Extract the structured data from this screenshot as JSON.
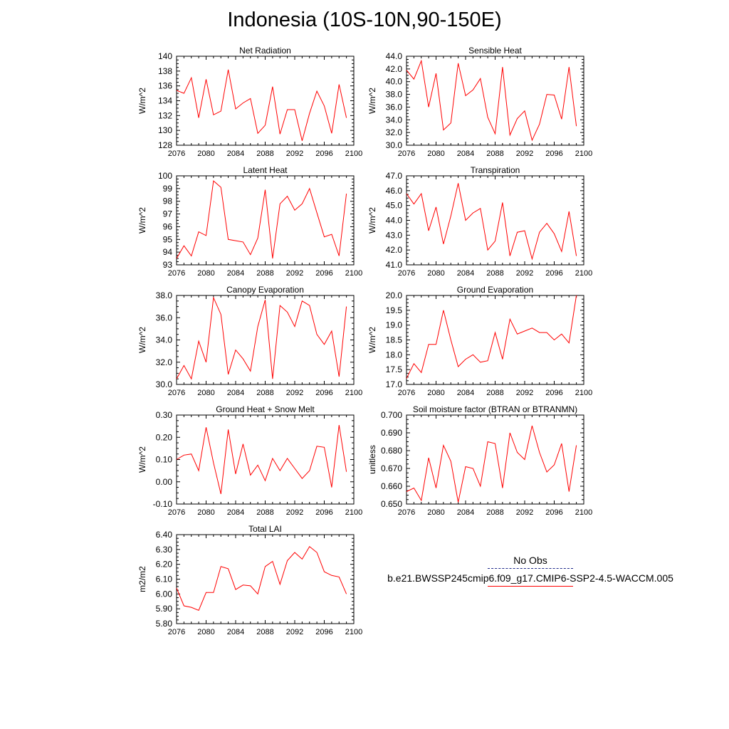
{
  "title": "Indonesia (10S-10N,90-150E)",
  "colors": {
    "series": "#ff0000",
    "obs": "#1f2a8a",
    "axis": "#000000"
  },
  "legend": {
    "obs_label": "No Obs",
    "sim_label": "b.e21.BWSSP245cmip6.f09_g17.CMIP6-SSP2-4.5-WACCM.005"
  },
  "chart_data": [
    {
      "type": "line",
      "title": "Net Radiation",
      "ylabel": "W/m^2",
      "x": [
        2076,
        2077,
        2078,
        2079,
        2080,
        2081,
        2082,
        2083,
        2084,
        2085,
        2086,
        2087,
        2088,
        2089,
        2090,
        2091,
        2092,
        2093,
        2094,
        2095,
        2096,
        2097,
        2098,
        2099
      ],
      "values": [
        135.4,
        135.0,
        137.1,
        131.7,
        136.9,
        132.1,
        132.6,
        138.2,
        132.9,
        133.7,
        134.3,
        129.6,
        130.7,
        135.9,
        129.5,
        132.8,
        132.8,
        128.6,
        132.3,
        135.3,
        133.3,
        129.6,
        136.2,
        131.7
      ],
      "xlim": [
        2076,
        2100
      ],
      "ylim": [
        128,
        140
      ],
      "xticks": [
        "2076",
        "2080",
        "2084",
        "2088",
        "2092",
        "2096",
        "2100"
      ],
      "yticks": [
        "128",
        "130",
        "132",
        "134",
        "136",
        "138",
        "140"
      ]
    },
    {
      "type": "line",
      "title": "Sensible Heat",
      "ylabel": "W/m^2",
      "x": [
        2076,
        2077,
        2078,
        2079,
        2080,
        2081,
        2082,
        2083,
        2084,
        2085,
        2086,
        2087,
        2088,
        2089,
        2090,
        2091,
        2092,
        2093,
        2094,
        2095,
        2096,
        2097,
        2098,
        2099
      ],
      "values": [
        41.8,
        40.4,
        43.3,
        36.0,
        41.3,
        32.4,
        33.5,
        42.9,
        37.8,
        38.7,
        40.5,
        34.4,
        31.8,
        42.3,
        31.6,
        34.2,
        35.4,
        30.8,
        33.3,
        38.0,
        37.9,
        34.1,
        42.3,
        33.0
      ],
      "xlim": [
        2076,
        2100
      ],
      "ylim": [
        30,
        44
      ],
      "xticks": [
        "2076",
        "2080",
        "2084",
        "2088",
        "2092",
        "2096",
        "2100"
      ],
      "yticks": [
        "30.0",
        "32.0",
        "34.0",
        "36.0",
        "38.0",
        "40.0",
        "42.0",
        "44.0"
      ]
    },
    {
      "type": "line",
      "title": "Latent Heat",
      "ylabel": "W/m^2",
      "x": [
        2076,
        2077,
        2078,
        2079,
        2080,
        2081,
        2082,
        2083,
        2084,
        2085,
        2086,
        2087,
        2088,
        2089,
        2090,
        2091,
        2092,
        2093,
        2094,
        2095,
        2096,
        2097,
        2098,
        2099
      ],
      "values": [
        93.5,
        94.5,
        93.7,
        95.6,
        95.3,
        99.6,
        99.1,
        95.0,
        94.9,
        94.8,
        93.8,
        95.1,
        98.9,
        93.5,
        97.8,
        98.4,
        97.3,
        97.8,
        99.0,
        97.1,
        95.2,
        95.4,
        93.7,
        98.6
      ],
      "xlim": [
        2076,
        2100
      ],
      "ylim": [
        93,
        100
      ],
      "xticks": [
        "2076",
        "2080",
        "2084",
        "2088",
        "2092",
        "2096",
        "2100"
      ],
      "yticks": [
        "93",
        "94",
        "95",
        "96",
        "97",
        "98",
        "99",
        "100"
      ]
    },
    {
      "type": "line",
      "title": "Transpiration",
      "ylabel": "W/m^2",
      "x": [
        2076,
        2077,
        2078,
        2079,
        2080,
        2081,
        2082,
        2083,
        2084,
        2085,
        2086,
        2087,
        2088,
        2089,
        2090,
        2091,
        2092,
        2093,
        2094,
        2095,
        2096,
        2097,
        2098,
        2099
      ],
      "values": [
        45.8,
        45.1,
        45.8,
        43.3,
        44.9,
        42.4,
        44.3,
        46.5,
        44.0,
        44.5,
        44.8,
        42.0,
        42.6,
        45.2,
        41.6,
        43.2,
        43.3,
        41.4,
        43.2,
        43.8,
        43.1,
        41.9,
        44.6,
        41.6
      ],
      "xlim": [
        2076,
        2100
      ],
      "ylim": [
        41,
        47
      ],
      "xticks": [
        "2076",
        "2080",
        "2084",
        "2088",
        "2092",
        "2096",
        "2100"
      ],
      "yticks": [
        "41.0",
        "42.0",
        "43.0",
        "44.0",
        "45.0",
        "46.0",
        "47.0"
      ]
    },
    {
      "type": "line",
      "title": "Canopy Evaporation",
      "ylabel": "W/m^2",
      "x": [
        2076,
        2077,
        2078,
        2079,
        2080,
        2081,
        2082,
        2083,
        2084,
        2085,
        2086,
        2087,
        2088,
        2089,
        2090,
        2091,
        2092,
        2093,
        2094,
        2095,
        2096,
        2097,
        2098,
        2099
      ],
      "values": [
        30.5,
        31.7,
        30.5,
        33.9,
        32.0,
        37.8,
        36.3,
        30.9,
        33.1,
        32.3,
        31.2,
        35.2,
        37.6,
        30.5,
        37.1,
        36.5,
        35.2,
        37.5,
        37.1,
        34.5,
        33.6,
        34.8,
        30.7,
        37.0
      ],
      "xlim": [
        2076,
        2100
      ],
      "ylim": [
        30,
        38
      ],
      "xticks": [
        "2076",
        "2080",
        "2084",
        "2088",
        "2092",
        "2096",
        "2100"
      ],
      "yticks": [
        "30.0",
        "32.0",
        "34.0",
        "36.0",
        "38.0"
      ]
    },
    {
      "type": "line",
      "title": "Ground Evaporation",
      "ylabel": "W/m^2",
      "x": [
        2076,
        2077,
        2078,
        2079,
        2080,
        2081,
        2082,
        2083,
        2084,
        2085,
        2086,
        2087,
        2088,
        2089,
        2090,
        2091,
        2092,
        2093,
        2094,
        2095,
        2096,
        2097,
        2098,
        2099
      ],
      "values": [
        17.2,
        17.7,
        17.4,
        18.35,
        18.35,
        19.5,
        18.5,
        17.6,
        17.85,
        18.0,
        17.75,
        17.8,
        18.75,
        17.85,
        19.2,
        18.7,
        18.8,
        18.9,
        18.75,
        18.75,
        18.5,
        18.7,
        18.4,
        20.0
      ],
      "xlim": [
        2076,
        2100
      ],
      "ylim": [
        17,
        20
      ],
      "xticks": [
        "2076",
        "2080",
        "2084",
        "2088",
        "2092",
        "2096",
        "2100"
      ],
      "yticks": [
        "17.0",
        "17.5",
        "18.0",
        "18.5",
        "19.0",
        "19.5",
        "20.0"
      ]
    },
    {
      "type": "line",
      "title": "Ground Heat + Snow Melt",
      "ylabel": "W/m^2",
      "x": [
        2076,
        2077,
        2078,
        2079,
        2080,
        2081,
        2082,
        2083,
        2084,
        2085,
        2086,
        2087,
        2088,
        2089,
        2090,
        2091,
        2092,
        2093,
        2094,
        2095,
        2096,
        2097,
        2098,
        2099
      ],
      "values": [
        0.1,
        0.12,
        0.125,
        0.05,
        0.245,
        0.085,
        -0.055,
        0.235,
        0.035,
        0.17,
        0.03,
        0.075,
        0.005,
        0.105,
        0.05,
        0.105,
        0.06,
        0.015,
        0.05,
        0.16,
        0.155,
        -0.025,
        0.255,
        0.045
      ],
      "xlim": [
        2076,
        2100
      ],
      "ylim": [
        -0.1,
        0.3
      ],
      "xticks": [
        "2076",
        "2080",
        "2084",
        "2088",
        "2092",
        "2096",
        "2100"
      ],
      "yticks": [
        "-0.10",
        "0.00",
        "0.10",
        "0.20",
        "0.30"
      ]
    },
    {
      "type": "line",
      "title": "Soil moisture factor (BTRAN or BTRANMN)",
      "ylabel": "unitless",
      "x": [
        2076,
        2077,
        2078,
        2079,
        2080,
        2081,
        2082,
        2083,
        2084,
        2085,
        2086,
        2087,
        2088,
        2089,
        2090,
        2091,
        2092,
        2093,
        2094,
        2095,
        2096,
        2097,
        2098,
        2099
      ],
      "values": [
        0.657,
        0.659,
        0.652,
        0.676,
        0.659,
        0.683,
        0.674,
        0.651,
        0.671,
        0.67,
        0.66,
        0.685,
        0.684,
        0.659,
        0.69,
        0.679,
        0.675,
        0.694,
        0.679,
        0.668,
        0.672,
        0.684,
        0.657,
        0.683
      ],
      "xlim": [
        2076,
        2100
      ],
      "ylim": [
        0.65,
        0.7
      ],
      "xticks": [
        "2076",
        "2080",
        "2084",
        "2088",
        "2092",
        "2096",
        "2100"
      ],
      "yticks": [
        "0.650",
        "0.660",
        "0.670",
        "0.680",
        "0.690",
        "0.700"
      ]
    },
    {
      "type": "line",
      "title": "Total LAI",
      "ylabel": "m2/m2",
      "x": [
        2076,
        2077,
        2078,
        2079,
        2080,
        2081,
        2082,
        2083,
        2084,
        2085,
        2086,
        2087,
        2088,
        2089,
        2090,
        2091,
        2092,
        2093,
        2094,
        2095,
        2096,
        2097,
        2098,
        2099
      ],
      "values": [
        6.04,
        5.92,
        5.91,
        5.89,
        6.01,
        6.01,
        6.185,
        6.17,
        6.03,
        6.06,
        6.055,
        6.0,
        6.185,
        6.22,
        6.065,
        6.225,
        6.28,
        6.235,
        6.32,
        6.28,
        6.15,
        6.125,
        6.115,
        6.0
      ],
      "xlim": [
        2076,
        2100
      ],
      "ylim": [
        5.8,
        6.4
      ],
      "xticks": [
        "2076",
        "2080",
        "2084",
        "2088",
        "2092",
        "2096",
        "2100"
      ],
      "yticks": [
        "5.80",
        "5.90",
        "6.00",
        "6.10",
        "6.20",
        "6.30",
        "6.40"
      ]
    }
  ]
}
